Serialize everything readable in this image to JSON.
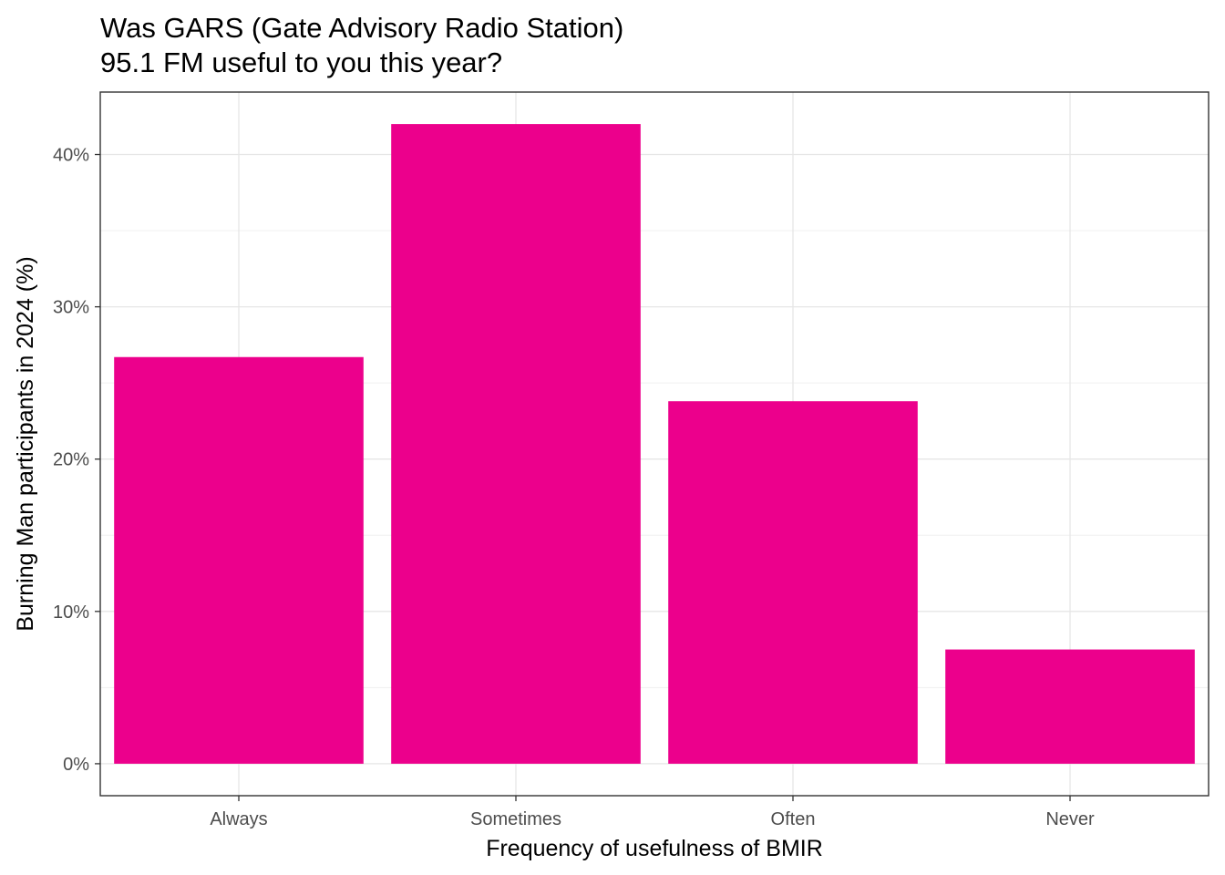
{
  "chart_data": {
    "type": "bar",
    "title_lines": [
      "Was GARS (Gate Advisory Radio Station)",
      "95.1 FM useful to you this year?"
    ],
    "xlabel": "Frequency of usefulness of BMIR",
    "ylabel": "Burning Man participants in 2024 (%)",
    "categories": [
      "Always",
      "Sometimes",
      "Often",
      "Never"
    ],
    "values": [
      26.7,
      42.0,
      23.8,
      7.5
    ],
    "ylim": [
      -2.1,
      44.1
    ],
    "y_ticks": [
      0,
      10,
      20,
      30,
      40
    ],
    "y_tick_labels": [
      "0%",
      "10%",
      "20%",
      "30%",
      "40%"
    ],
    "bar_color": "#EC008C",
    "grid": true,
    "legend": "none"
  }
}
